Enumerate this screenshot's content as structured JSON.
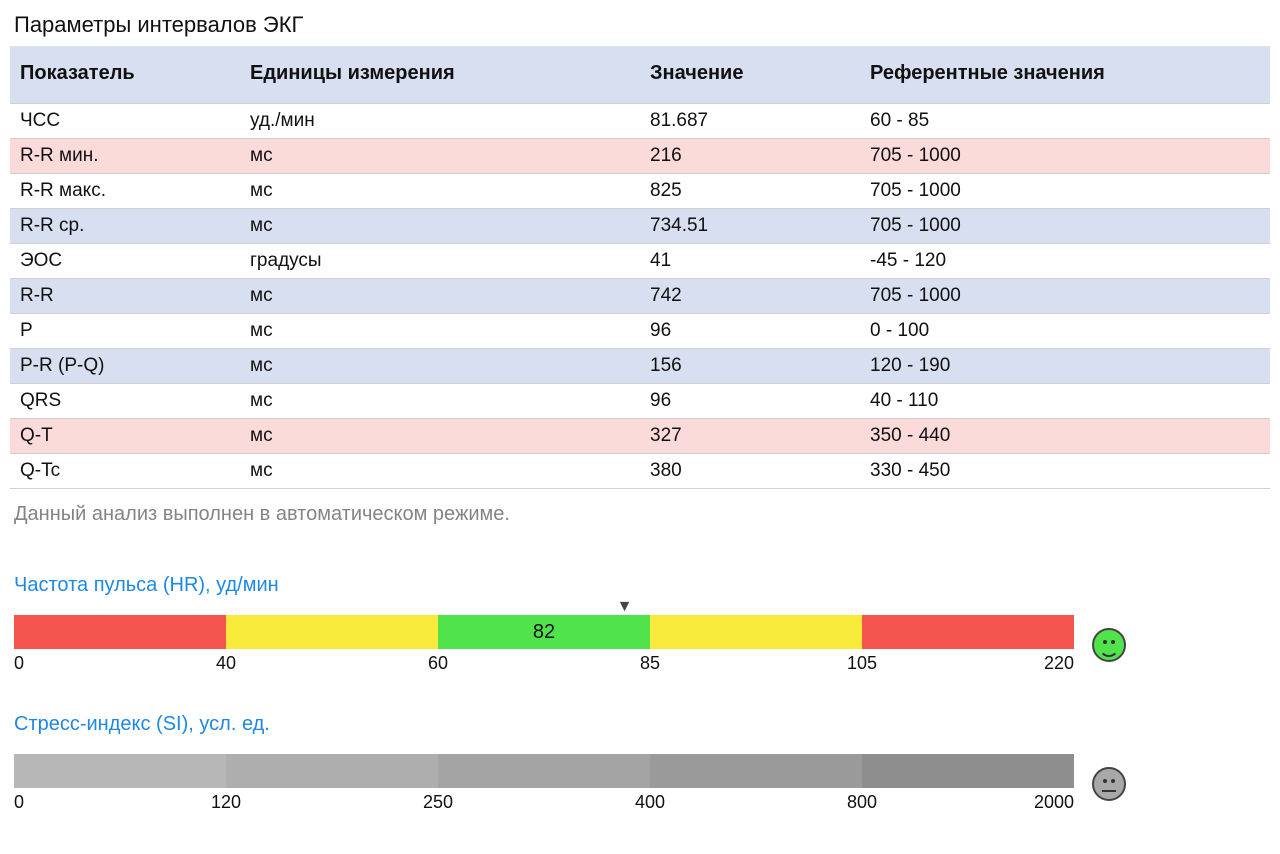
{
  "title": "Параметры интервалов ЭКГ",
  "table": {
    "columns": [
      "Показатель",
      "Единицы измерения",
      "Значение",
      "Референтные значения"
    ],
    "header_bg": "#d7dff0",
    "row_default_bg": "#ffffff",
    "row_alt_bg": "#d7dff0",
    "row_warn_bg": "#fbdada",
    "border_color": "#d0d0d0",
    "rows": [
      {
        "cells": [
          "ЧСС",
          "уд./мин",
          "81.687",
          "60 - 85"
        ],
        "bg": "#ffffff"
      },
      {
        "cells": [
          "R-R мин.",
          "мс",
          "216",
          "705 - 1000"
        ],
        "bg": "#fbdada"
      },
      {
        "cells": [
          "R-R макс.",
          "мс",
          "825",
          "705 - 1000"
        ],
        "bg": "#ffffff"
      },
      {
        "cells": [
          "R-R ср.",
          "мс",
          "734.51",
          "705 - 1000"
        ],
        "bg": "#d7dff0"
      },
      {
        "cells": [
          "ЭОС",
          "градусы",
          "41",
          "-45 - 120"
        ],
        "bg": "#ffffff"
      },
      {
        "cells": [
          "R-R",
          "мс",
          "742",
          "705 - 1000"
        ],
        "bg": "#d7dff0"
      },
      {
        "cells": [
          "P",
          "мс",
          "96",
          "0 - 100"
        ],
        "bg": "#ffffff"
      },
      {
        "cells": [
          "P-R (P-Q)",
          "мс",
          "156",
          "120 - 190"
        ],
        "bg": "#d7dff0"
      },
      {
        "cells": [
          "QRS",
          "мс",
          "96",
          "40 - 110"
        ],
        "bg": "#ffffff"
      },
      {
        "cells": [
          "Q-T",
          "мс",
          "327",
          "350 - 440"
        ],
        "bg": "#fbdada"
      },
      {
        "cells": [
          "Q-Tc",
          "мс",
          "380",
          "330 - 450"
        ],
        "bg": "#ffffff"
      }
    ]
  },
  "footnote": "Данный анализ выполнен в автоматическом режиме.",
  "gauges": [
    {
      "id": "hr",
      "title": "Частота пульса (HR), уд/мин",
      "title_color": "#1e88e5",
      "segments": [
        {
          "color": "#f4554e",
          "width_pct": 20.0
        },
        {
          "color": "#f9eb3b",
          "width_pct": 20.0
        },
        {
          "color": "#51e34c",
          "width_pct": 20.0
        },
        {
          "color": "#f9eb3b",
          "width_pct": 20.0
        },
        {
          "color": "#f4554e",
          "width_pct": 20.0
        }
      ],
      "ticks": [
        {
          "label": "0",
          "pos_pct": 0,
          "edge": "first"
        },
        {
          "label": "40",
          "pos_pct": 20
        },
        {
          "label": "60",
          "pos_pct": 40
        },
        {
          "label": "85",
          "pos_pct": 60
        },
        {
          "label": "105",
          "pos_pct": 80
        },
        {
          "label": "220",
          "pos_pct": 100,
          "edge": "last"
        }
      ],
      "value_label": "82",
      "value_seg_start_pct": 40,
      "value_seg_width_pct": 20,
      "marker_pos_pct": 57.6,
      "face": {
        "bg": "#51e34c",
        "mood": "smile"
      }
    },
    {
      "id": "si",
      "title": "Стресс-индекс (SI), усл. ед.",
      "title_color": "#1e88e5",
      "segments": [
        {
          "color": "#b7b7b7",
          "width_pct": 20.0
        },
        {
          "color": "#aeaeae",
          "width_pct": 20.0
        },
        {
          "color": "#a4a4a4",
          "width_pct": 20.0
        },
        {
          "color": "#9a9a9a",
          "width_pct": 20.0
        },
        {
          "color": "#8e8e8e",
          "width_pct": 20.0
        }
      ],
      "ticks": [
        {
          "label": "0",
          "pos_pct": 0,
          "edge": "first"
        },
        {
          "label": "120",
          "pos_pct": 20
        },
        {
          "label": "250",
          "pos_pct": 40
        },
        {
          "label": "400",
          "pos_pct": 60
        },
        {
          "label": "800",
          "pos_pct": 80
        },
        {
          "label": "2000",
          "pos_pct": 100,
          "edge": "last"
        }
      ],
      "value_label": null,
      "marker_pos_pct": null,
      "face": {
        "bg": "#a8a8a8",
        "mood": "flat"
      }
    }
  ]
}
